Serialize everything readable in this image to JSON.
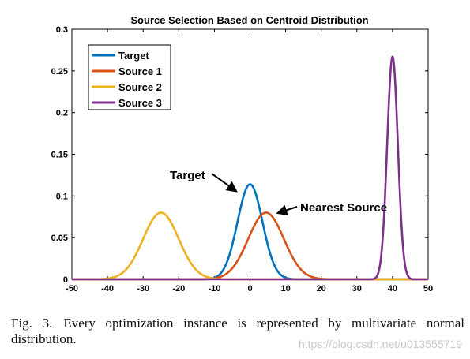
{
  "chart_data": {
    "type": "line",
    "title": "Source Selection Based on Centroid Distribution",
    "xlabel": "",
    "ylabel": "",
    "xlim": [
      -50,
      50
    ],
    "ylim": [
      0,
      0.3
    ],
    "x_ticks": [
      "-50",
      "-40",
      "-30",
      "-20",
      "-10",
      "0",
      "10",
      "20",
      "30",
      "40",
      "50"
    ],
    "y_ticks": [
      "0",
      "0.05",
      "0.1",
      "0.15",
      "0.2",
      "0.25",
      "0.3"
    ],
    "grid": false,
    "legend_position": "top-left",
    "series": [
      {
        "name": "Target",
        "color": "#0072BD",
        "mean": 0,
        "sd": 3.5,
        "peak": 0.114,
        "x": [
          -50,
          -10,
          -7,
          -5,
          -3,
          -1.5,
          0,
          1.5,
          3,
          5,
          7,
          10,
          50
        ],
        "y": [
          0,
          0.0019,
          0.0154,
          0.0408,
          0.0789,
          0.1041,
          0.114,
          0.1041,
          0.0789,
          0.0408,
          0.0154,
          0.0019,
          0
        ]
      },
      {
        "name": "Source 1",
        "color": "#D95319",
        "mean": 4.5,
        "sd": 5.0,
        "peak": 0.08,
        "x": [
          -50,
          -10,
          -5,
          -2,
          0,
          2.5,
          4.5,
          6.5,
          9,
          11,
          14,
          19,
          50
        ],
        "y": [
          0,
          0.0001,
          0.0131,
          0.0343,
          0.0534,
          0.0738,
          0.08,
          0.0738,
          0.0534,
          0.0343,
          0.0131,
          0.0011,
          0
        ]
      },
      {
        "name": "Source 2",
        "color": "#EDB120",
        "mean": -25,
        "sd": 5.0,
        "peak": 0.08,
        "x": [
          -50,
          -40,
          -35,
          -32,
          -30,
          -27,
          -25,
          -23,
          -20,
          -18,
          -15,
          -10,
          50
        ],
        "y": [
          0,
          0.0009,
          0.0108,
          0.03,
          0.0485,
          0.0738,
          0.08,
          0.0738,
          0.0485,
          0.03,
          0.0108,
          0.0009,
          0
        ]
      },
      {
        "name": "Source 3",
        "color": "#7E2F8E",
        "mean": 40,
        "sd": 1.5,
        "peak": 0.267,
        "x": [
          -50,
          35,
          36.5,
          37.5,
          38.5,
          39.3,
          40,
          40.7,
          41.5,
          42.5,
          43.5,
          45,
          50
        ],
        "y": [
          0,
          0.001,
          0.0075,
          0.0662,
          0.162,
          0.2356,
          0.267,
          0.2356,
          0.162,
          0.0662,
          0.0075,
          0.001,
          0
        ]
      }
    ],
    "annotations": [
      {
        "text": "Target",
        "target_x": -1.5,
        "target_y": 0.11
      },
      {
        "text": "Nearest Source",
        "target_x": 6.5,
        "target_y": 0.082
      }
    ]
  },
  "caption": {
    "label": "Fig. 3.",
    "text": "Every optimization instance is represented by multivariate normal distribution."
  },
  "watermark": "https://blog.csdn.net/u013555719"
}
